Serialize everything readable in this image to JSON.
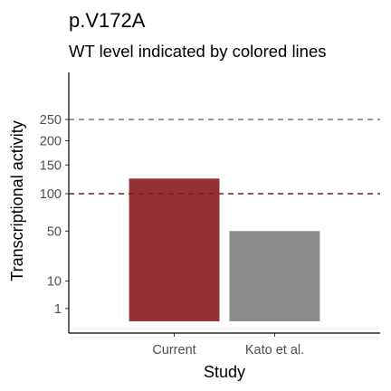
{
  "chart_data": {
    "type": "bar",
    "title": "p.V172A",
    "subtitle": "WT level indicated by colored lines",
    "xlabel": "Study",
    "ylabel": "Transcriptional activity",
    "categories": [
      "Current",
      "Kato et al."
    ],
    "values": [
      125,
      50
    ],
    "bar_colors": [
      "#953136",
      "#8c8c8c"
    ],
    "y_scale": "sqrt",
    "ylim": [
      0,
      350
    ],
    "y_ticks": [
      1,
      10,
      50,
      100,
      150,
      200,
      250
    ],
    "reference_lines": [
      {
        "value": 100,
        "color": "#7b1a1a",
        "style": "dashed"
      },
      {
        "value": 250,
        "color": "#7a7a7a",
        "style": "dashed"
      }
    ],
    "grid": false,
    "legend": "none"
  }
}
